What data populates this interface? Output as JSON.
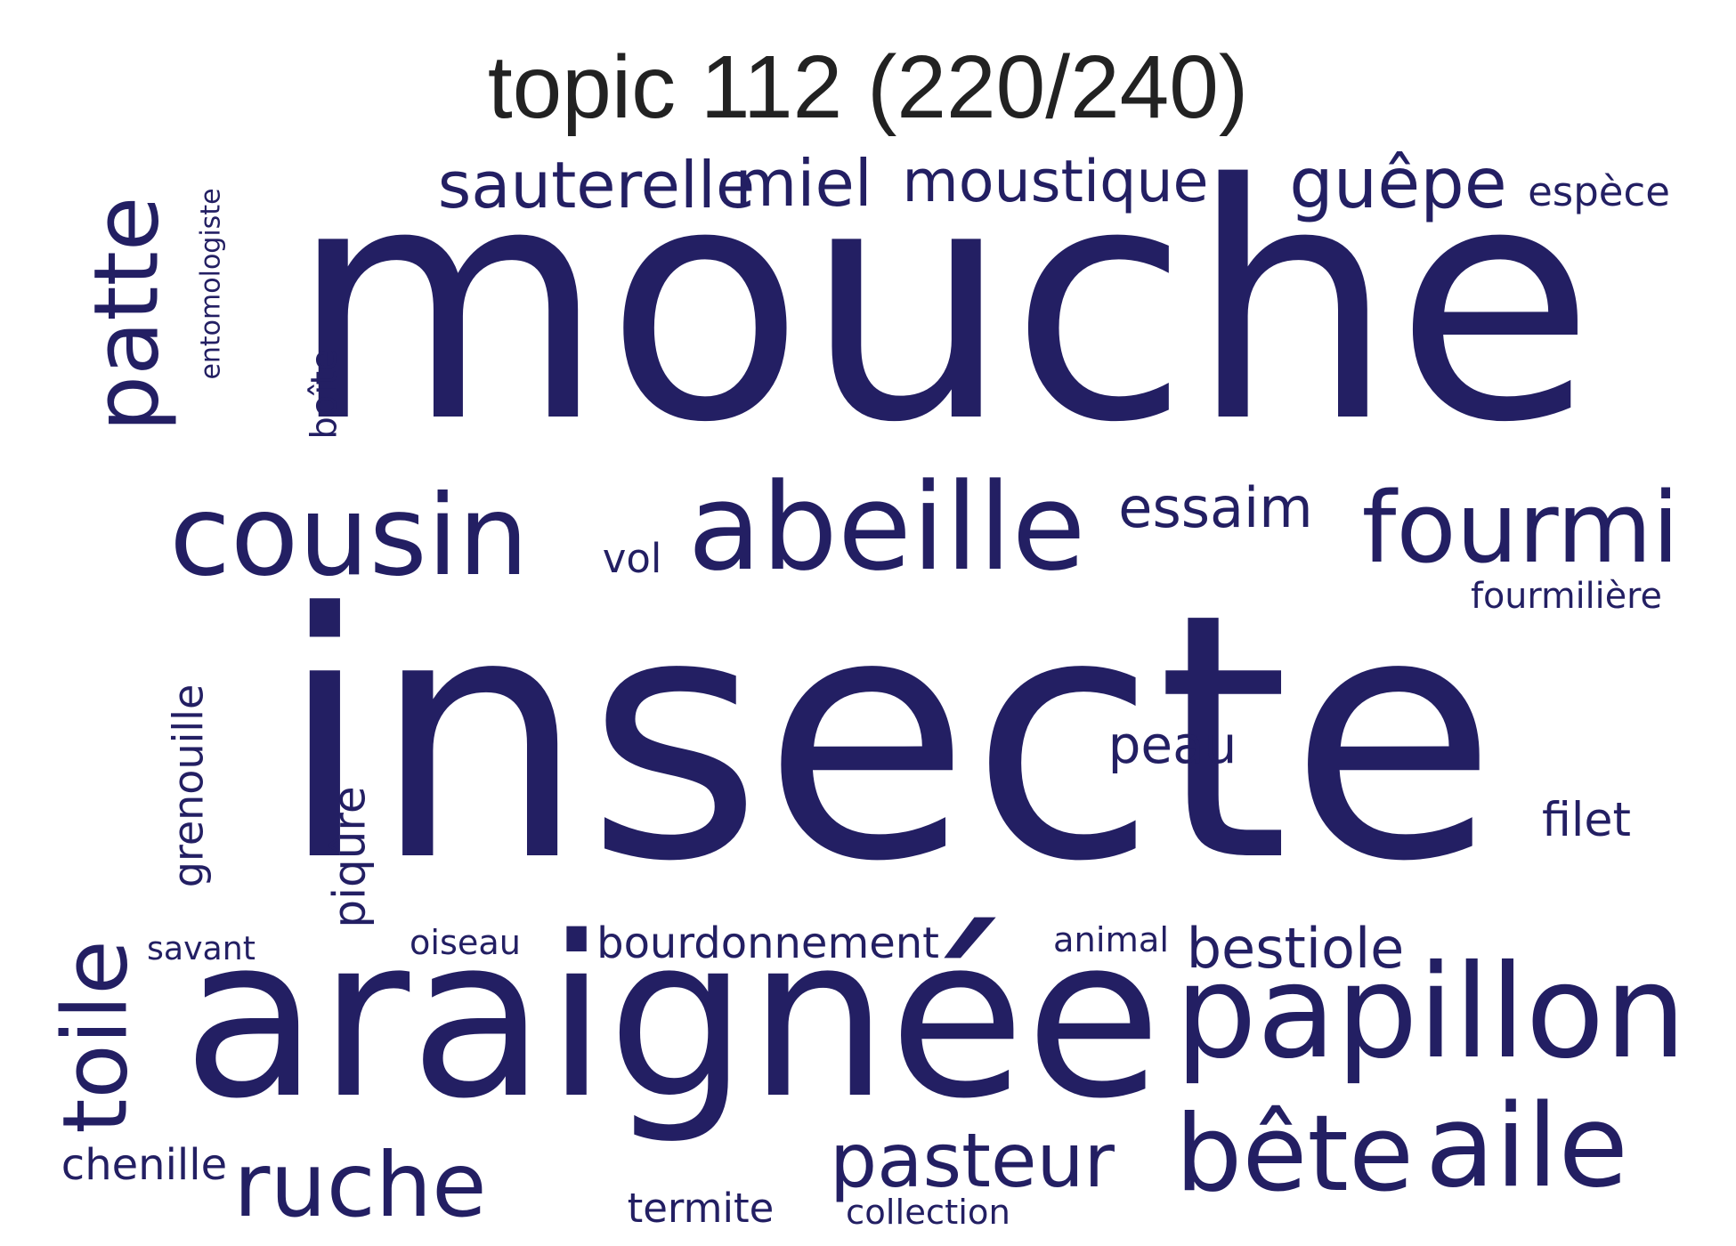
{
  "title": "topic 112 (220/240)",
  "colors": {
    "word": "#231f63",
    "title": "#222222",
    "background": "#ffffff"
  },
  "words": [
    {
      "id": "insecte",
      "text": "insecte",
      "rotation": "horizontal"
    },
    {
      "id": "mouche",
      "text": "mouche",
      "rotation": "horizontal"
    },
    {
      "id": "araignee",
      "text": "araignée",
      "rotation": "horizontal"
    },
    {
      "id": "papillon",
      "text": "papillon",
      "rotation": "horizontal"
    },
    {
      "id": "abeille",
      "text": "abeille",
      "rotation": "horizontal"
    },
    {
      "id": "cousin",
      "text": "cousin",
      "rotation": "horizontal"
    },
    {
      "id": "fourmi",
      "text": "fourmi",
      "rotation": "horizontal"
    },
    {
      "id": "patte",
      "text": "patte",
      "rotation": "vertical"
    },
    {
      "id": "bete",
      "text": "bête",
      "rotation": "horizontal"
    },
    {
      "id": "aile",
      "text": "aile",
      "rotation": "horizontal"
    },
    {
      "id": "ruche",
      "text": "ruche",
      "rotation": "horizontal"
    },
    {
      "id": "toile",
      "text": "toile",
      "rotation": "vertical"
    },
    {
      "id": "pasteur",
      "text": "pasteur",
      "rotation": "horizontal"
    },
    {
      "id": "sauterelle",
      "text": "sauterelle",
      "rotation": "horizontal"
    },
    {
      "id": "miel",
      "text": "miel",
      "rotation": "horizontal"
    },
    {
      "id": "moustique",
      "text": "moustique",
      "rotation": "horizontal"
    },
    {
      "id": "guepe",
      "text": "guêpe",
      "rotation": "horizontal"
    },
    {
      "id": "essaim",
      "text": "essaim",
      "rotation": "horizontal"
    },
    {
      "id": "grenouille",
      "text": "grenouille",
      "rotation": "vertical"
    },
    {
      "id": "bestiole",
      "text": "bestiole",
      "rotation": "horizontal"
    },
    {
      "id": "piqure",
      "text": "piqûre",
      "rotation": "vertical"
    },
    {
      "id": "peau",
      "text": "peau",
      "rotation": "horizontal"
    },
    {
      "id": "bourdonnement",
      "text": "bourdonnement",
      "rotation": "horizontal"
    },
    {
      "id": "filet",
      "text": "filet",
      "rotation": "horizontal"
    },
    {
      "id": "chenille",
      "text": "chenille",
      "rotation": "horizontal"
    },
    {
      "id": "boite",
      "text": "boîte",
      "rotation": "vertical"
    },
    {
      "id": "termite",
      "text": "termite",
      "rotation": "horizontal"
    },
    {
      "id": "entomologiste",
      "text": "entomologiste",
      "rotation": "vertical"
    },
    {
      "id": "espece",
      "text": "espèce",
      "rotation": "horizontal"
    },
    {
      "id": "fourmiliere",
      "text": "fourmilière",
      "rotation": "horizontal"
    },
    {
      "id": "vol",
      "text": "vol",
      "rotation": "horizontal"
    },
    {
      "id": "savant",
      "text": "savant",
      "rotation": "horizontal"
    },
    {
      "id": "oiseau",
      "text": "oiseau",
      "rotation": "horizontal"
    },
    {
      "id": "animal",
      "text": "animal",
      "rotation": "horizontal"
    },
    {
      "id": "collection",
      "text": "collection",
      "rotation": "horizontal"
    }
  ]
}
